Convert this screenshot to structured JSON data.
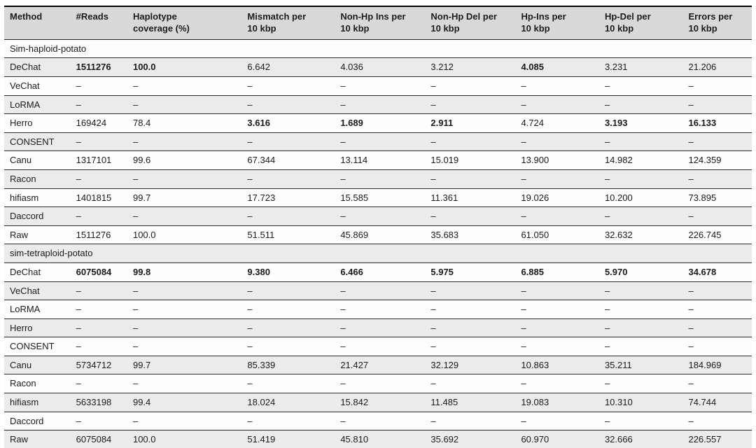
{
  "table": {
    "columns": [
      "Method",
      "#Reads",
      "Haplotype\ncoverage (%)",
      "Mismatch per\n10 kbp",
      "Non-Hp Ins per\n10 kbp",
      "Non-Hp Del per\n10 kbp",
      "Hp-Ins per\n10 kbp",
      "Hp-Del per\n10 kbp",
      "Errors per\n10 kbp"
    ],
    "dash": "–",
    "colors": {
      "header_bg": "#d8d8d8",
      "row_gray": "#ebebeb",
      "row_light": "#fdfdfd",
      "border": "#2c2c2c"
    },
    "sections": [
      {
        "title": "Sim-haploid-potato",
        "rows": [
          {
            "method": "DeChat",
            "cells": [
              "1511276",
              "100.0",
              "6.642",
              "4.036",
              "3.212",
              "4.085",
              "3.231",
              "21.206"
            ],
            "bold": [
              0,
              1,
              5
            ]
          },
          {
            "method": "VeChat",
            "cells": [
              "–",
              "–",
              "–",
              "–",
              "–",
              "–",
              "–",
              "–"
            ],
            "bold": []
          },
          {
            "method": "LoRMA",
            "cells": [
              "–",
              "–",
              "–",
              "–",
              "–",
              "–",
              "–",
              "–"
            ],
            "bold": []
          },
          {
            "method": "Herro",
            "cells": [
              "169424",
              "78.4",
              "3.616",
              "1.689",
              "2.911",
              "4.724",
              "3.193",
              "16.133"
            ],
            "bold": [
              2,
              3,
              4,
              6,
              7
            ]
          },
          {
            "method": "CONSENT",
            "cells": [
              "–",
              "–",
              "–",
              "–",
              "–",
              "–",
              "–",
              "–"
            ],
            "bold": []
          },
          {
            "method": "Canu",
            "cells": [
              "1317101",
              "99.6",
              "67.344",
              "13.114",
              "15.019",
              "13.900",
              "14.982",
              "124.359"
            ],
            "bold": []
          },
          {
            "method": "Racon",
            "cells": [
              "–",
              "–",
              "–",
              "–",
              "–",
              "–",
              "–",
              "–"
            ],
            "bold": []
          },
          {
            "method": "hifiasm",
            "cells": [
              "1401815",
              "99.7",
              "17.723",
              "15.585",
              "11.361",
              "19.026",
              "10.200",
              "73.895"
            ],
            "bold": []
          },
          {
            "method": "Daccord",
            "cells": [
              "–",
              "–",
              "–",
              "–",
              "–",
              "–",
              "–",
              "–"
            ],
            "bold": []
          },
          {
            "method": "Raw",
            "cells": [
              "1511276",
              "100.0",
              "51.511",
              "45.869",
              "35.683",
              "61.050",
              "32.632",
              "226.745"
            ],
            "bold": []
          }
        ]
      },
      {
        "title": "sim-tetraploid-potato",
        "rows": [
          {
            "method": "DeChat",
            "cells": [
              "6075084",
              "99.8",
              "9.380",
              "6.466",
              "5.975",
              "6.885",
              "5.970",
              "34.678"
            ],
            "bold": [
              0,
              1,
              2,
              3,
              4,
              5,
              6,
              7
            ]
          },
          {
            "method": "VeChat",
            "cells": [
              "–",
              "–",
              "–",
              "–",
              "–",
              "–",
              "–",
              "–"
            ],
            "bold": []
          },
          {
            "method": "LoRMA",
            "cells": [
              "–",
              "–",
              "–",
              "–",
              "–",
              "–",
              "–",
              "–"
            ],
            "bold": []
          },
          {
            "method": "Herro",
            "cells": [
              "–",
              "–",
              "–",
              "–",
              "–",
              "–",
              "–",
              "–"
            ],
            "bold": []
          },
          {
            "method": "CONSENT",
            "cells": [
              "–",
              "–",
              "–",
              "–",
              "–",
              "–",
              "–",
              "–"
            ],
            "bold": []
          },
          {
            "method": "Canu",
            "cells": [
              "5734712",
              "99.7",
              "85.339",
              "21.427",
              "32.129",
              "10.863",
              "35.211",
              "184.969"
            ],
            "bold": []
          },
          {
            "method": "Racon",
            "cells": [
              "–",
              "–",
              "–",
              "–",
              "–",
              "–",
              "–",
              "–"
            ],
            "bold": []
          },
          {
            "method": "hifiasm",
            "cells": [
              "5633198",
              "99.4",
              "18.024",
              "15.842",
              "11.485",
              "19.083",
              "10.310",
              "74.744"
            ],
            "bold": []
          },
          {
            "method": "Daccord",
            "cells": [
              "–",
              "–",
              "–",
              "–",
              "–",
              "–",
              "–",
              "–"
            ],
            "bold": []
          },
          {
            "method": "Raw",
            "cells": [
              "6075084",
              "100.0",
              "51.419",
              "45.810",
              "35.692",
              "60.970",
              "32.666",
              "226.557"
            ],
            "bold": []
          }
        ]
      }
    ]
  }
}
